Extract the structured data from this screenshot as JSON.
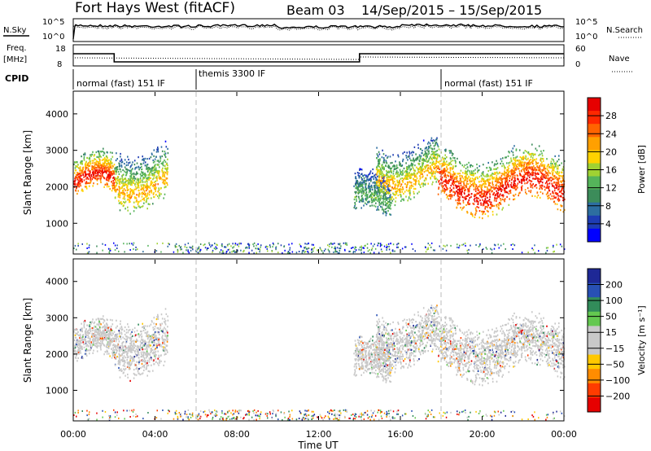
{
  "header": {
    "station": "Fort Hays West (fitACF)",
    "beam": "Beam 03",
    "date_range": "14/Sep/2015 – 15/Sep/2015"
  },
  "noise_panel": {
    "left_label": "N.Sky",
    "right_label": "N.Search",
    "left_ticks": [
      "10^5",
      "10^0"
    ],
    "right_ticks": [
      "10^5",
      "10^0"
    ]
  },
  "freq_panel": {
    "left_label_line1": "Freq.",
    "left_label_line2": "[MHz]",
    "right_label": "Nave",
    "left_ticks": [
      "18",
      "8"
    ],
    "right_ticks": [
      "60",
      "0"
    ],
    "freq_segments": [
      {
        "start_h": 0,
        "end_h": 2,
        "mhz": 15.5
      },
      {
        "start_h": 2,
        "end_h": 14,
        "mhz": 10.5
      },
      {
        "start_h": 14,
        "end_h": 24,
        "mhz": 15.5
      }
    ]
  },
  "cpid": {
    "label": "CPID",
    "modes": [
      {
        "start_h": 0,
        "end_h": 6,
        "name": "normal (fast) 151 IF"
      },
      {
        "start_h": 6,
        "end_h": 18,
        "name": "themis 3300 IF"
      },
      {
        "start_h": 18,
        "end_h": 24,
        "name": "normal (fast) 151 IF"
      }
    ]
  },
  "chart_data": [
    {
      "type": "heatmap",
      "panel": "power",
      "ylabel": "Slant Range [km]",
      "xlabel": "",
      "xlim_hours": [
        0,
        24
      ],
      "ylim": [
        180,
        4600
      ],
      "yticks": [
        1000,
        2000,
        3000,
        4000
      ],
      "colorbar": {
        "label": "Power [dB]",
        "ticks": [
          "28",
          "24",
          "20",
          "16",
          "12",
          "8",
          "4"
        ]
      },
      "echo_regions": [
        {
          "t0": 0.0,
          "t1": 2.0,
          "r_low": 1700,
          "r_high": 2800,
          "level": "high"
        },
        {
          "t0": 2.0,
          "t1": 4.6,
          "r_low": 1500,
          "r_high": 3200,
          "level": "mid"
        },
        {
          "t0": 13.7,
          "t1": 15.5,
          "r_low": 1100,
          "r_high": 2300,
          "level": "low"
        },
        {
          "t0": 14.8,
          "t1": 17.8,
          "r_low": 1800,
          "r_high": 3300,
          "level": "mid"
        },
        {
          "t0": 17.8,
          "t1": 24.0,
          "r_low": 1400,
          "r_high": 3000,
          "level": "high"
        }
      ]
    },
    {
      "type": "heatmap",
      "panel": "velocity",
      "ylabel": "Slant Range [km]",
      "xlabel": "Time UT",
      "xlim_hours": [
        0,
        24
      ],
      "ylim": [
        180,
        4600
      ],
      "yticks": [
        1000,
        2000,
        3000,
        4000
      ],
      "xtick_labels": [
        "00:00",
        "04:00",
        "08:00",
        "12:00",
        "16:00",
        "20:00",
        "00:00"
      ],
      "colorbar": {
        "label": "Velocity [m s⁻¹]",
        "ticks": [
          "200",
          "100",
          "50",
          "15",
          "−15",
          "−50",
          "−100",
          "−200"
        ]
      }
    }
  ],
  "colors": {
    "power_scale": [
      "#0000ff",
      "#1e3cb4",
      "#2d6ea0",
      "#3c8c5a",
      "#55b45a",
      "#a0d232",
      "#ffd200",
      "#ffa000",
      "#ff6400",
      "#ff2800",
      "#e60000"
    ],
    "velocity_scale": [
      "#1e2896",
      "#2850b4",
      "#328c5a",
      "#64c850",
      "#c8c8c8",
      "#c8c8c8",
      "#ffc800",
      "#ff8c00",
      "#ff3c00",
      "#e60000"
    ]
  }
}
